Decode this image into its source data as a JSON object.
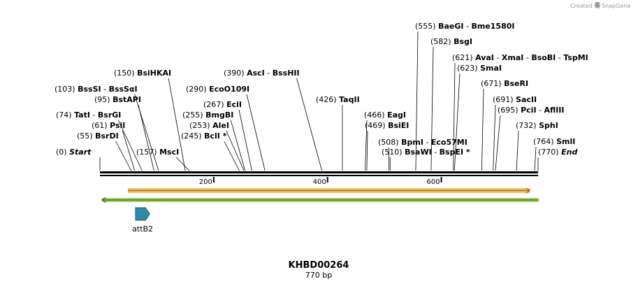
{
  "credit": {
    "prefix": "Created by",
    "brand": "SnapGene"
  },
  "sequence": {
    "name": "KHBD00264",
    "length_label": "770 bp",
    "length": 770
  },
  "colors": {
    "primer_fill": "#f5c96b",
    "primer_edge": "#e0931c",
    "primer_line": "#a66b00",
    "green_fill": "#b8e06a",
    "green_edge": "#6aa01e",
    "arrow_dark": "#2c7000",
    "feature": "#2f8aa6",
    "feature_edge": "#1e5c70"
  },
  "ticks": [
    {
      "pos": 200,
      "label": "200"
    },
    {
      "pos": 400,
      "label": "400"
    },
    {
      "pos": 600,
      "label": "600"
    }
  ],
  "sites": [
    {
      "name": "Start",
      "pos": "0",
      "x": 0,
      "italic": true
    },
    {
      "name": "BsrDI",
      "pos": "55",
      "x": 55
    },
    {
      "name": "PsiI",
      "pos": "61",
      "x": 61
    },
    {
      "name": "TatI",
      "name2": "BsrGI",
      "pos": "74",
      "x": 74
    },
    {
      "name": "BstAPI",
      "pos": "95",
      "x": 95
    },
    {
      "name": "BssSI",
      "name2": "BssSαI",
      "pos": "103",
      "x": 103
    },
    {
      "name": "BsiHKAI",
      "pos": "150",
      "x": 150
    },
    {
      "name": "MscI",
      "pos": "157",
      "x": 157
    },
    {
      "name": "BclI *",
      "pos": "245",
      "x": 245
    },
    {
      "name": "AleI",
      "pos": "253",
      "x": 253
    },
    {
      "name": "BmgBI",
      "pos": "255",
      "x": 255
    },
    {
      "name": "EciI",
      "pos": "267",
      "x": 267
    },
    {
      "name": "EcoO109I",
      "pos": "290",
      "x": 290
    },
    {
      "name": "AscI",
      "name2": "BssHII",
      "pos": "390",
      "x": 390
    },
    {
      "name": "TaqII",
      "pos": "426",
      "x": 426
    },
    {
      "name": "EagI",
      "pos": "466",
      "x": 466
    },
    {
      "name": "BsiEI",
      "pos": "469",
      "x": 469
    },
    {
      "name": "BsaWI",
      "name2": "BspEI *",
      "pos": "510",
      "x": 510
    },
    {
      "name": "BpmI",
      "name2": "Eco57MI",
      "pos": "508",
      "x": 508
    },
    {
      "name": "BaeGI",
      "name2": "Bme1580I",
      "pos": "555",
      "x": 555
    },
    {
      "name": "BsgI",
      "pos": "582",
      "x": 582
    },
    {
      "name": "AvaI",
      "name2": "XmaI",
      "name3": "BsoBI",
      "name4": "TspMI",
      "pos": "621",
      "x": 621
    },
    {
      "name": "SmaI",
      "pos": "623",
      "x": 623
    },
    {
      "name": "BseRI",
      "pos": "671",
      "x": 671
    },
    {
      "name": "SacII",
      "pos": "691",
      "x": 691
    },
    {
      "name": "PciI",
      "name2": "AflIII",
      "pos": "695",
      "x": 695
    },
    {
      "name": "SphI",
      "pos": "732",
      "x": 732
    },
    {
      "name": "SmlI",
      "pos": "764",
      "x": 764
    },
    {
      "name": "End",
      "pos": "770",
      "x": 770,
      "italic": true
    }
  ],
  "features": [
    {
      "name": "primer-bar",
      "kind": "primer",
      "start": 50,
      "end": 755,
      "strand": "forward"
    },
    {
      "name": "green-bar",
      "kind": "green",
      "start": 0,
      "end": 770,
      "strand": "reverse"
    },
    {
      "name": "attB2",
      "kind": "arrow",
      "start": 65,
      "end": 90,
      "label": "attB2"
    }
  ]
}
